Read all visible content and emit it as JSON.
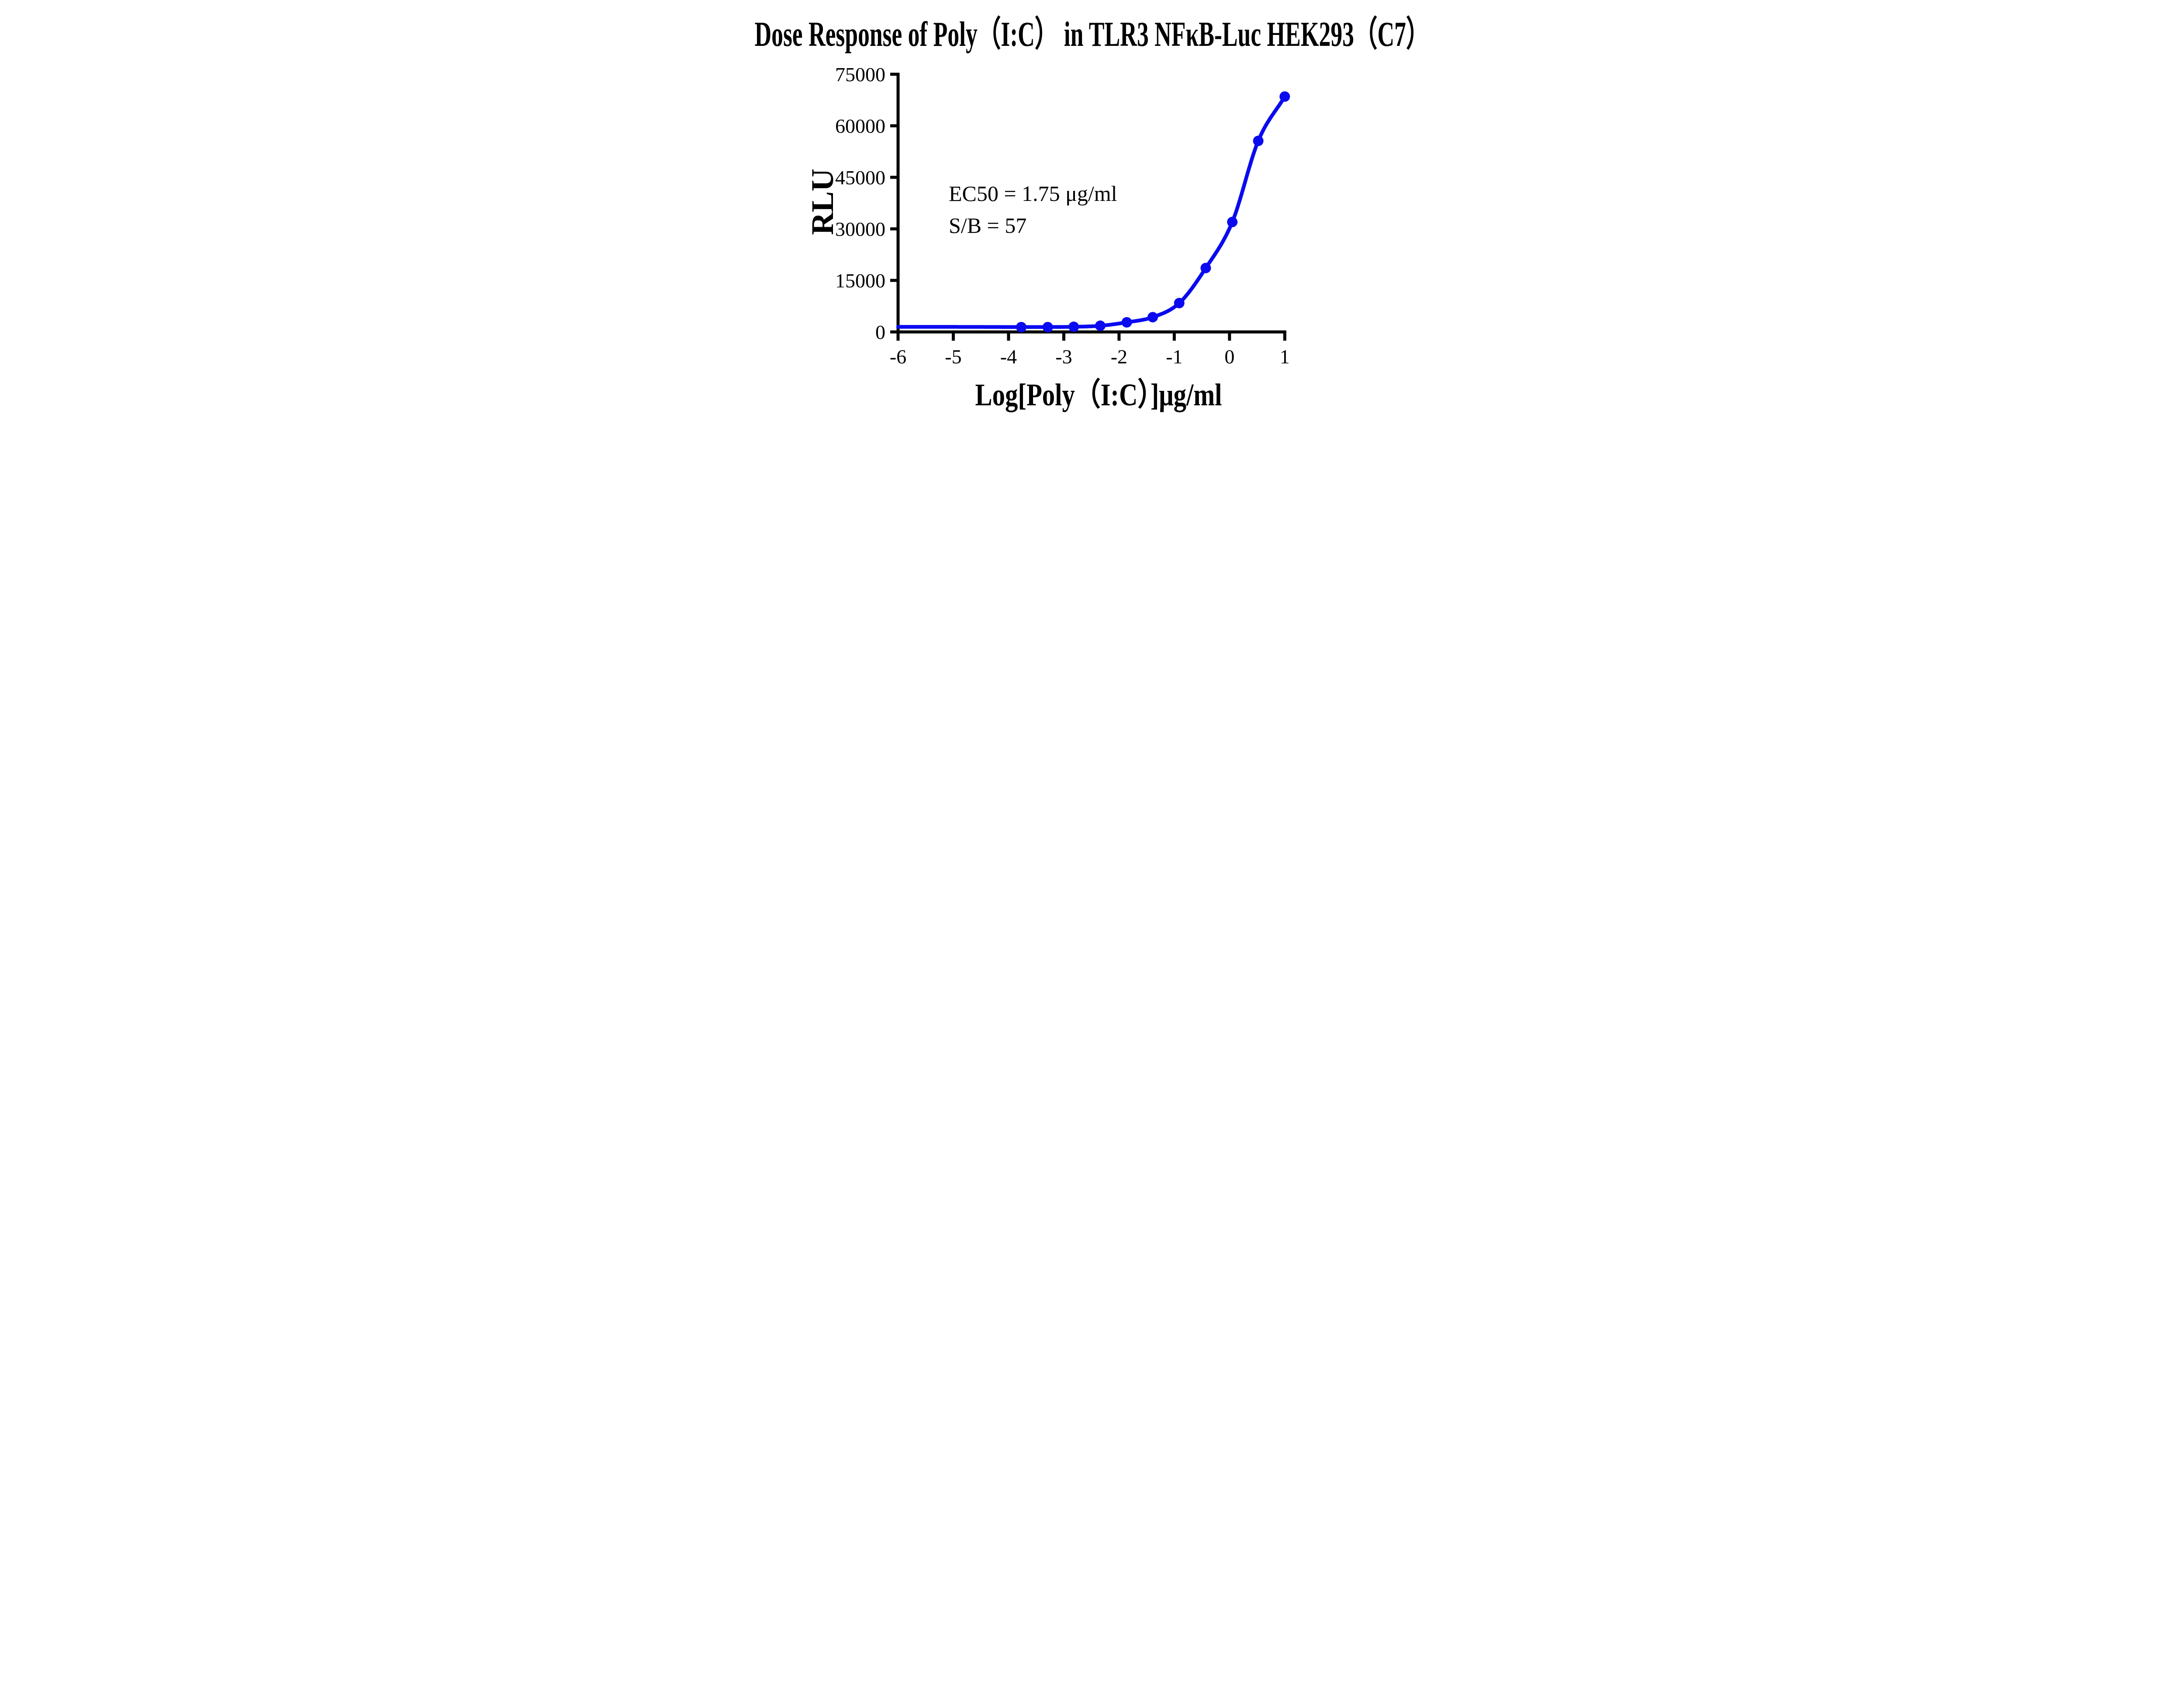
{
  "chart_data": {
    "type": "scatter",
    "title": "Dose Response of Poly（I:C） in TLR3 NFκB-Luc HEK293（C7）",
    "xlabel": "Log[Poly（I:C）]μg/ml",
    "ylabel": "RLU",
    "xlim": [
      -6,
      1
    ],
    "ylim": [
      0,
      75000
    ],
    "x_ticks": [
      -6,
      -5,
      -4,
      -3,
      -2,
      -1,
      0,
      1
    ],
    "y_ticks": [
      0,
      15000,
      30000,
      45000,
      60000,
      75000
    ],
    "grid": false,
    "legend": "none",
    "axis_color": "#000000",
    "series": [
      {
        "name": "Poly(I:C)",
        "color": "#0A0AF0",
        "marker": "circle",
        "x": [
          -3.77,
          -3.29,
          -2.82,
          -2.34,
          -1.86,
          -1.39,
          -0.91,
          -0.43,
          0.05,
          0.52,
          1.0
        ],
        "y": [
          1400,
          1400,
          1500,
          1800,
          2800,
          4300,
          8400,
          18600,
          32000,
          55600,
          68500
        ]
      }
    ],
    "fit_curve": {
      "x": [
        -6.0,
        -5.0,
        -4.3,
        -3.77,
        -3.29,
        -2.82,
        -2.34,
        -1.86,
        -1.39,
        -0.91,
        -0.43,
        0.05,
        0.52,
        1.0
      ],
      "y": [
        1480,
        1470,
        1450,
        1430,
        1440,
        1500,
        1800,
        2800,
        4300,
        8400,
        18600,
        32000,
        55600,
        68500
      ]
    },
    "annotations": [
      {
        "label": "ec50",
        "text": "EC50 = 1.75 μg/ml"
      },
      {
        "label": "signal_to_background",
        "text": "S/B = 57"
      }
    ]
  }
}
